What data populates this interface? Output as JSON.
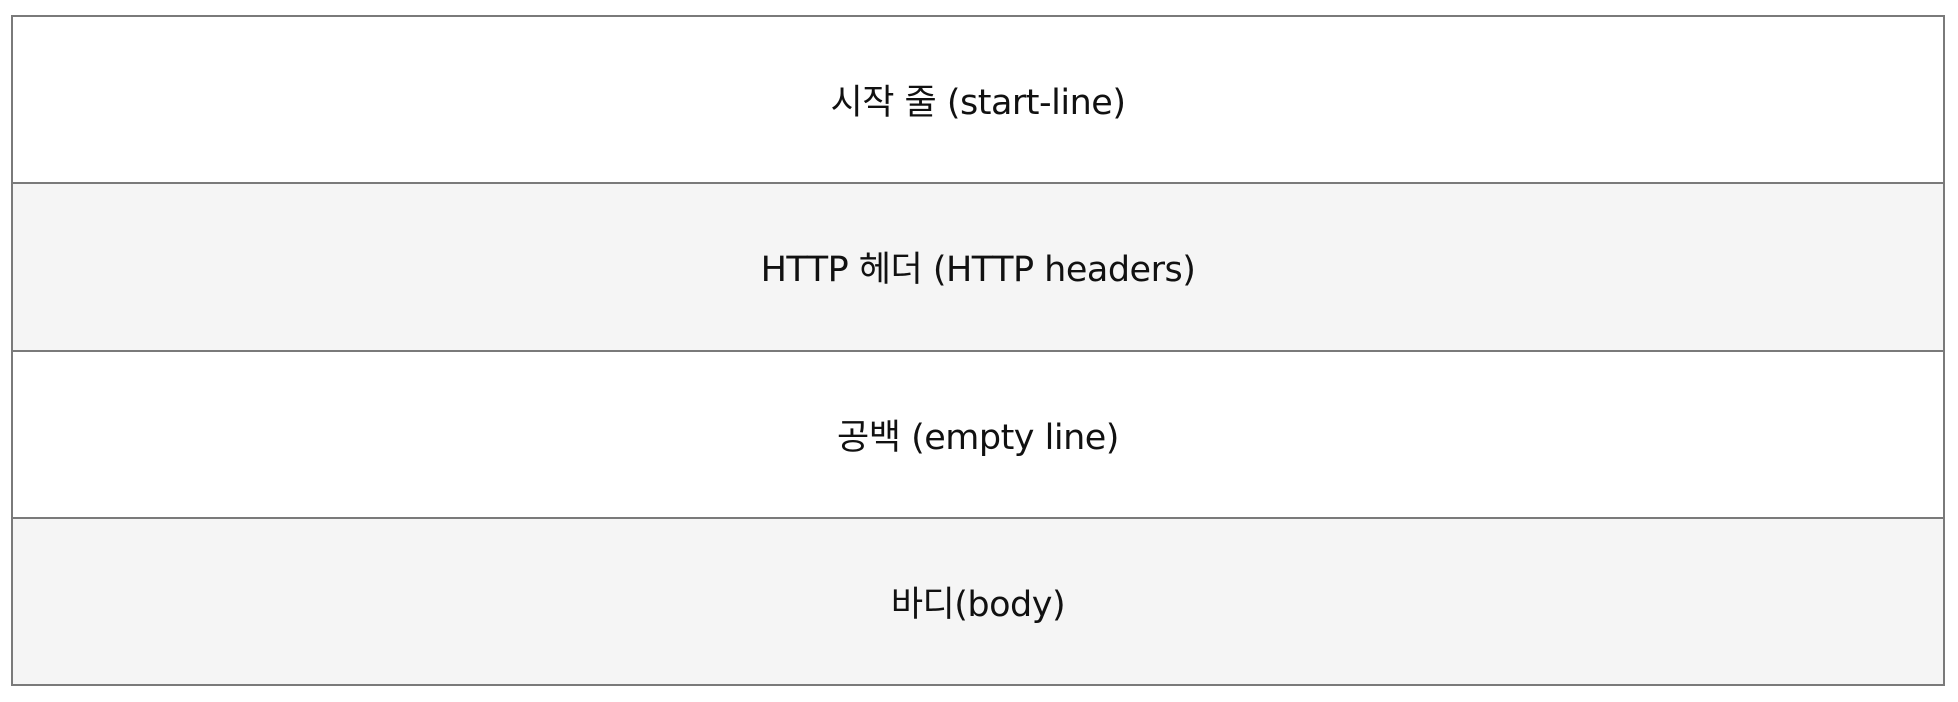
{
  "diagram": {
    "border_color": "#7a7a7a",
    "sections": [
      {
        "label": "시작 줄 (start-line)",
        "background": "#ffffff"
      },
      {
        "label": "HTTP 헤더 (HTTP headers)",
        "background": "#f5f5f5"
      },
      {
        "label": "공백 (empty line)",
        "background": "#ffffff"
      },
      {
        "label": "바디(body)",
        "background": "#f5f5f5"
      }
    ]
  }
}
